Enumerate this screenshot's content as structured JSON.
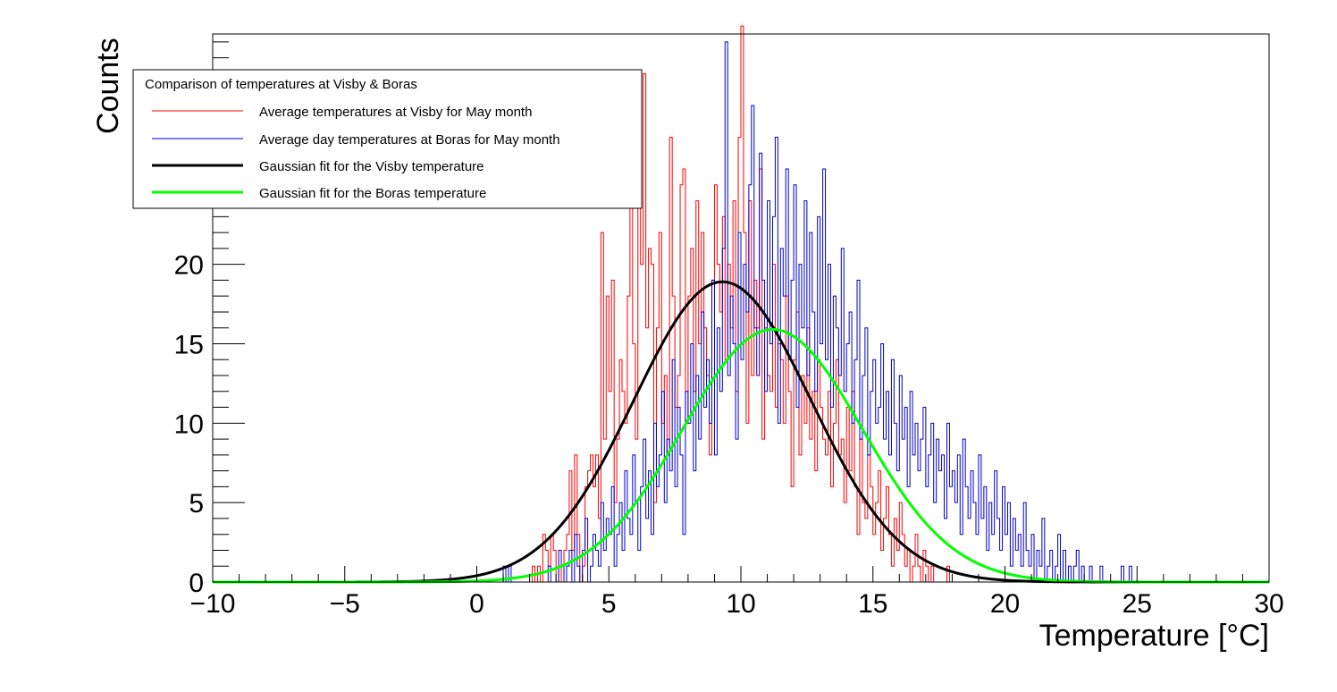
{
  "chart_data": {
    "type": "line",
    "xlabel": "Temperature [°C]",
    "ylabel": "Counts",
    "xlim": [
      -10,
      30
    ],
    "ylim": [
      0,
      34.5
    ],
    "x_ticks": [
      -10,
      -5,
      0,
      5,
      10,
      15,
      20,
      25,
      30
    ],
    "x_tick_labels": [
      "−10",
      "−5",
      "0",
      "5",
      "10",
      "15",
      "20",
      "25",
      "30"
    ],
    "y_ticks": [
      0,
      5,
      10,
      15,
      20
    ],
    "y_tick_labels": [
      "0",
      "5",
      "10",
      "15",
      "20"
    ],
    "grid": false,
    "legend": {
      "placement": "top-left",
      "title": "Comparison of temperatures at Visby & Boras",
      "entries": [
        "Average temperatures at Visby for May month",
        "Average day temperatures at Boras for May month",
        "Gaussian fit for the Visby temperature",
        "Gaussian fit for the Boras temperature"
      ]
    },
    "series": [
      {
        "name": "Average temperatures at Visby for May month",
        "kind": "histogram",
        "color": "#ff0000",
        "bin_width": 0.1,
        "x_start": 1.6,
        "values": [
          0,
          0,
          0,
          0,
          0,
          1,
          0,
          1,
          0,
          3,
          2,
          1,
          3,
          2,
          0,
          1,
          0,
          2,
          3,
          7,
          2,
          8,
          3,
          0,
          1,
          6,
          7,
          8,
          6,
          8,
          4,
          22,
          9,
          18,
          12,
          19,
          5,
          9,
          14,
          12,
          10,
          18,
          24,
          15,
          9,
          25,
          20,
          32,
          16,
          21,
          20,
          5,
          16,
          22,
          10,
          13,
          8,
          28,
          18,
          11,
          13,
          25,
          26,
          10,
          18,
          21,
          12,
          24,
          15,
          22,
          16,
          13,
          8,
          19,
          25,
          20,
          17,
          23,
          14,
          20,
          16,
          24,
          12,
          28,
          35,
          22,
          10,
          24,
          13,
          19,
          16,
          26,
          9,
          16,
          13,
          12,
          20,
          11,
          15,
          14,
          10,
          18,
          12,
          6,
          14,
          17,
          8,
          13,
          10,
          16,
          9,
          12,
          7,
          14,
          11,
          9,
          8,
          12,
          6,
          10,
          14,
          8,
          9,
          5,
          11,
          7,
          12,
          6,
          3,
          9,
          5,
          4,
          8,
          6,
          3,
          5,
          7,
          2,
          4,
          6,
          3,
          1,
          4,
          2,
          5,
          3,
          1,
          2,
          0,
          1,
          3,
          1,
          0,
          2,
          1,
          0,
          1,
          0,
          0,
          0,
          0,
          0,
          1,
          0,
          0,
          0
        ]
      },
      {
        "name": "Average day temperatures at Boras for May month",
        "kind": "histogram",
        "color": "#0000cc",
        "bin_width": 0.1,
        "x_start": 1.0,
        "values": [
          1,
          0,
          1,
          0,
          0,
          0,
          0,
          0,
          0,
          0,
          0,
          0,
          0,
          0,
          0,
          0,
          0,
          1,
          0,
          0,
          0,
          2,
          1,
          0,
          1,
          2,
          0,
          3,
          1,
          0,
          2,
          4,
          0,
          1,
          3,
          2,
          1,
          5,
          2,
          4,
          3,
          6,
          1,
          3,
          5,
          2,
          7,
          4,
          3,
          8,
          5,
          2,
          6,
          9,
          4,
          7,
          3,
          10,
          6,
          8,
          12,
          5,
          9,
          7,
          14,
          6,
          11,
          8,
          3,
          12,
          10,
          15,
          7,
          13,
          9,
          17,
          11,
          14,
          10,
          19,
          8,
          16,
          12,
          21,
          34,
          13,
          18,
          15,
          9,
          22,
          14,
          20,
          17,
          25,
          30,
          16,
          13,
          27,
          19,
          12,
          24,
          15,
          23,
          28,
          10,
          21,
          18,
          26,
          14,
          19,
          25,
          11,
          20,
          16,
          24,
          13,
          22,
          17,
          12,
          23,
          15,
          26,
          14,
          20,
          11,
          18,
          16,
          13,
          21,
          12,
          15,
          17,
          10,
          14,
          19,
          9,
          13,
          16,
          8,
          12,
          14,
          10,
          11,
          15,
          9,
          12,
          8,
          14,
          10,
          7,
          13,
          9,
          11,
          6,
          12,
          8,
          10,
          7,
          9,
          11,
          6,
          8,
          10,
          5,
          9,
          7,
          8,
          4,
          10,
          6,
          7,
          5,
          8,
          3,
          9,
          6,
          4,
          7,
          5,
          3,
          8,
          4,
          6,
          2,
          5,
          3,
          7,
          4,
          2,
          6,
          3,
          5,
          1,
          4,
          2,
          3,
          1,
          5,
          2,
          1,
          3,
          0,
          2,
          1,
          4,
          0,
          1,
          2,
          0,
          1,
          3,
          0,
          2,
          0,
          1,
          0,
          1,
          2,
          0,
          1,
          0,
          0,
          1,
          0,
          0,
          0,
          1,
          0,
          0,
          0,
          0,
          0,
          0,
          0,
          1,
          0,
          0,
          1,
          0,
          0,
          0,
          0,
          0
        ]
      },
      {
        "name": "Gaussian fit for the Visby temperature",
        "kind": "gaussian",
        "color": "#000000",
        "amplitude": 18.9,
        "mean": 9.3,
        "sigma": 3.35
      },
      {
        "name": "Gaussian fit for the Boras temperature",
        "kind": "gaussian",
        "color": "#00ff00",
        "amplitude": 15.9,
        "mean": 11.2,
        "sigma": 3.4
      }
    ]
  }
}
